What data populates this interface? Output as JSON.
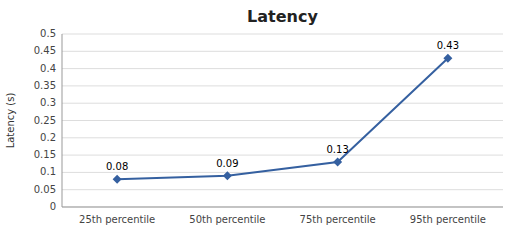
{
  "chart_data": {
    "type": "line",
    "title": "Latency",
    "ylabel": "Latency (s)",
    "categories": [
      "25th percentile",
      "50th percentile",
      "75th percentile",
      "95th percentile"
    ],
    "values": [
      0.08,
      0.09,
      0.13,
      0.43
    ],
    "color": "#3560A0",
    "marker": "diamond",
    "ylim": [
      0,
      0.5
    ],
    "yticks": [
      0,
      0.05,
      0.1,
      0.15,
      0.2,
      0.25,
      0.3,
      0.35,
      0.4,
      0.45,
      0.5
    ],
    "grid": true,
    "data_labels": true
  }
}
